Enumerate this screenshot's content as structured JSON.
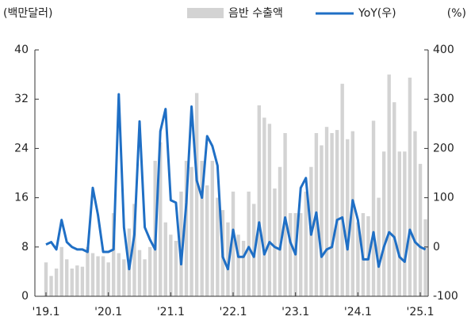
{
  "chart_data": {
    "type": "bar-line",
    "y_label": "(백만달러)",
    "y2_label": "(%)",
    "categories": [
      "'19.1",
      null,
      null,
      null,
      null,
      null,
      null,
      null,
      null,
      null,
      null,
      null,
      "'20.1",
      null,
      null,
      null,
      null,
      null,
      null,
      null,
      null,
      null,
      null,
      null,
      "'21.1",
      null,
      null,
      null,
      null,
      null,
      null,
      null,
      null,
      null,
      null,
      null,
      "'22.1",
      null,
      null,
      null,
      null,
      null,
      null,
      null,
      null,
      null,
      null,
      null,
      "'23.1",
      null,
      null,
      null,
      null,
      null,
      null,
      null,
      null,
      null,
      null,
      null,
      "'24.1",
      null,
      null,
      null,
      null,
      null,
      null,
      null,
      null,
      null,
      null,
      null,
      "'25.1",
      null
    ],
    "series": [
      {
        "name": "음반 수출액",
        "type": "bar",
        "color": "#d3d3d3",
        "values": [
          5.5,
          3.3,
          4.5,
          8,
          6,
          4.5,
          5,
          4.8,
          8,
          7,
          6.5,
          6.5,
          5.5,
          13.5,
          7,
          6,
          11,
          15,
          7.5,
          6,
          8,
          22,
          25,
          12,
          10,
          9,
          17,
          22,
          21,
          33,
          22,
          18,
          22,
          16,
          14,
          12,
          17,
          10,
          9,
          17,
          15,
          31,
          29,
          28,
          17.5,
          21,
          26.5,
          13.5,
          13.5,
          13.5,
          17,
          21,
          26.5,
          24.5,
          27.5,
          26.5,
          27,
          34.5,
          25.5,
          26.8,
          12,
          13.5,
          13,
          28.5,
          16,
          23.5,
          36,
          31.5,
          23.5,
          23.5,
          35.5,
          26.8,
          21.5,
          12.5
        ]
      },
      {
        "name": "YoY(우)",
        "type": "line",
        "axis": "y2",
        "color": "#1f6fc5",
        "values": [
          5,
          10,
          -5,
          55,
          10,
          0,
          -5,
          -5,
          -10,
          120,
          65,
          -10,
          -10,
          -5,
          310,
          40,
          -45,
          25,
          255,
          40,
          15,
          -5,
          235,
          280,
          95,
          90,
          -35,
          90,
          285,
          135,
          100,
          225,
          205,
          165,
          -20,
          -45,
          35,
          -20,
          -20,
          0,
          -20,
          50,
          -15,
          10,
          0,
          -5,
          60,
          10,
          -15,
          120,
          140,
          25,
          70,
          -20,
          -5,
          0,
          55,
          60,
          -5,
          95,
          55,
          -25,
          -25,
          30,
          -40,
          0,
          30,
          20,
          -20,
          -30,
          35,
          10,
          0,
          -5
        ]
      }
    ],
    "ylim": [
      0,
      40
    ],
    "yticks": [
      0,
      8,
      16,
      24,
      32,
      40
    ],
    "y2lim": [
      -100,
      400
    ],
    "y2ticks": [
      -100,
      0,
      100,
      200,
      300,
      400
    ]
  }
}
